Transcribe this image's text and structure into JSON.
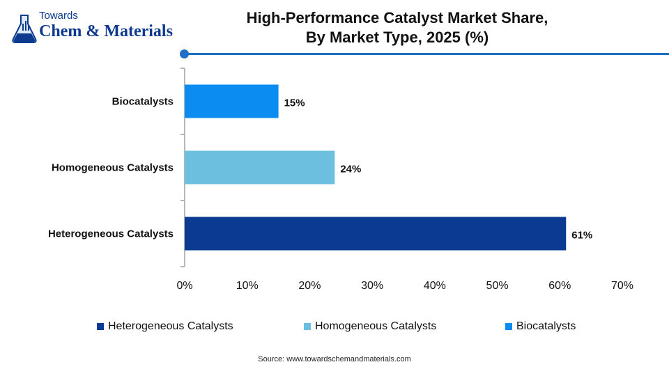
{
  "logo": {
    "line1": "Towards",
    "line2": "Chem & Materials"
  },
  "title_line1": "High-Performance Catalyst Market Share,",
  "title_line2": "By Market Type, 2025 (%)",
  "source": "Source:  www.towardschemandmaterials.com",
  "chart_data": {
    "type": "bar",
    "orientation": "horizontal",
    "title": "High-Performance Catalyst Market Share, By Market Type, 2025 (%)",
    "categories": [
      "Biocatalysts",
      "Homogeneous Catalysts",
      "Heterogeneous Catalysts"
    ],
    "values": [
      15,
      24,
      61
    ],
    "value_labels": [
      "15%",
      "24%",
      "61%"
    ],
    "colors": [
      "#0a8cf0",
      "#6cbfdf",
      "#0a3a92"
    ],
    "xlim": [
      0,
      70
    ],
    "xticks": [
      "0%",
      "10%",
      "20%",
      "30%",
      "40%",
      "50%",
      "60%",
      "70%"
    ],
    "grid": false,
    "legend_position": "bottom",
    "legend": [
      {
        "label": "Heterogeneous Catalysts",
        "color": "#0a3a92"
      },
      {
        "label": "Homogeneous Catalysts",
        "color": "#6cbfdf"
      },
      {
        "label": "Biocatalysts",
        "color": "#0a8cf0"
      }
    ]
  }
}
